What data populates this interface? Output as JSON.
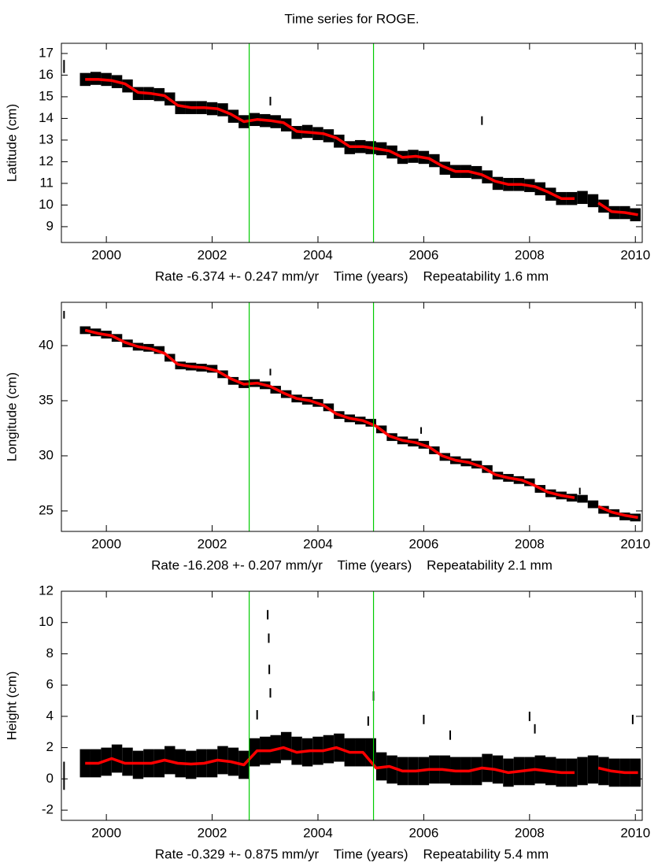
{
  "chart_data": [
    {
      "type": "timeseries",
      "title": "Time series for ROGE.",
      "ylabel": "Latitude (cm)",
      "xlabel": "Rate -6.374 +- 0.247 mm/yr    Time (years)    Repeatability 1.6 mm",
      "xlim": [
        1999.15,
        2010.13
      ],
      "xticks": [
        2000,
        2002,
        2004,
        2006,
        2008,
        2010
      ],
      "ylim": [
        8.27,
        17.47
      ],
      "yticks": [
        9,
        10,
        11,
        12,
        13,
        14,
        15,
        16,
        17
      ],
      "vlines": [
        2002.7,
        2005.05
      ],
      "vline_color": "#00cc00",
      "series": [
        {
          "style": "band",
          "color": "#000000",
          "error": 0.3,
          "x": [
            1999.2,
            1999.6,
            1999.8,
            2000.0,
            2000.2,
            2000.4,
            2000.6,
            2000.8,
            2001.0,
            2001.2,
            2001.4,
            2001.6,
            2001.8,
            2002.0,
            2002.2,
            2002.4,
            2002.6,
            2002.8,
            2003.0,
            2003.2,
            2003.4,
            2003.6,
            2003.8,
            2004.0,
            2004.2,
            2004.4,
            2004.6,
            2004.8,
            2005.0,
            2005.2,
            2005.4,
            2005.6,
            2005.8,
            2006.0,
            2006.2,
            2006.4,
            2006.6,
            2006.8,
            2007.0,
            2007.2,
            2007.4,
            2007.6,
            2007.8,
            2008.0,
            2008.2,
            2008.4,
            2008.6,
            2008.8,
            2009.0,
            2009.2,
            2009.4,
            2009.6,
            2009.8,
            2010.0
          ],
          "values": [
            16.4,
            15.8,
            15.85,
            15.8,
            15.7,
            15.5,
            15.15,
            15.15,
            15.1,
            14.9,
            14.5,
            14.5,
            14.5,
            14.45,
            14.4,
            14.1,
            13.85,
            13.95,
            13.9,
            13.85,
            13.7,
            13.35,
            13.4,
            13.3,
            13.2,
            12.95,
            12.65,
            12.7,
            12.65,
            12.6,
            12.45,
            12.2,
            12.25,
            12.2,
            12.05,
            11.7,
            11.55,
            11.55,
            11.5,
            11.3,
            11.0,
            10.95,
            10.95,
            10.9,
            10.75,
            10.5,
            10.3,
            10.3,
            10.35,
            10.2,
            9.95,
            9.65,
            9.65,
            9.55
          ]
        },
        {
          "style": "points",
          "color": "#000000",
          "error": 0.2,
          "x": [
            2003.1,
            2007.1
          ],
          "values": [
            14.8,
            13.9
          ]
        },
        {
          "style": "line",
          "color": "#ff0000",
          "x": [
            1999.6,
            1999.85,
            2000.1,
            2000.35,
            2000.6,
            2000.85,
            2001.1,
            2001.35,
            2001.6,
            2001.85,
            2002.1,
            2002.35,
            2002.6,
            2002.85,
            2003.1,
            2003.35,
            2003.6,
            2003.85,
            2004.1,
            2004.35,
            2004.6,
            2004.85,
            2005.1,
            2005.35,
            2005.6,
            2005.85,
            2006.1,
            2006.35,
            2006.6,
            2006.85,
            2007.1,
            2007.35,
            2007.6,
            2007.85,
            2008.1,
            2008.35,
            2008.6,
            2008.85,
            2009.05,
            2009.3,
            2009.55,
            2009.8,
            2010.05
          ],
          "values": [
            15.8,
            15.8,
            15.75,
            15.6,
            15.2,
            15.15,
            15.05,
            14.6,
            14.5,
            14.5,
            14.45,
            14.2,
            13.85,
            13.95,
            13.9,
            13.8,
            13.4,
            13.35,
            13.3,
            13.1,
            12.7,
            12.7,
            12.6,
            12.5,
            12.2,
            12.25,
            12.15,
            11.8,
            11.55,
            11.55,
            11.4,
            11.1,
            10.95,
            10.95,
            10.85,
            10.6,
            10.3,
            10.3,
            null,
            10.1,
            9.7,
            9.65,
            9.55
          ]
        }
      ]
    },
    {
      "type": "timeseries",
      "ylabel": "Longitude (cm)",
      "xlabel": "Rate -16.208 +- 0.207 mm/yr    Time (years)    Repeatability 2.1 mm",
      "xlim": [
        1999.15,
        2010.13
      ],
      "xticks": [
        2000,
        2002,
        2004,
        2006,
        2008,
        2010
      ],
      "ylim": [
        23.14,
        43.93
      ],
      "yticks": [
        25,
        30,
        35,
        40
      ],
      "vlines": [
        2002.7,
        2005.05
      ],
      "vline_color": "#00cc00",
      "series": [
        {
          "style": "band",
          "color": "#000000",
          "error": 0.35,
          "x": [
            1999.2,
            1999.6,
            1999.8,
            2000.0,
            2000.2,
            2000.4,
            2000.6,
            2000.8,
            2001.0,
            2001.2,
            2001.4,
            2001.6,
            2001.8,
            2002.0,
            2002.2,
            2002.4,
            2002.6,
            2002.8,
            2003.0,
            2003.2,
            2003.4,
            2003.6,
            2003.8,
            2004.0,
            2004.2,
            2004.4,
            2004.6,
            2004.8,
            2005.0,
            2005.2,
            2005.4,
            2005.6,
            2005.8,
            2006.0,
            2006.2,
            2006.4,
            2006.6,
            2006.8,
            2007.0,
            2007.2,
            2007.4,
            2007.6,
            2007.8,
            2008.0,
            2008.2,
            2008.4,
            2008.6,
            2008.8,
            2009.0,
            2009.2,
            2009.4,
            2009.6,
            2009.8,
            2010.0
          ],
          "values": [
            42.8,
            41.4,
            41.2,
            41.0,
            40.7,
            40.2,
            39.9,
            39.8,
            39.6,
            38.9,
            38.2,
            38.1,
            38.0,
            37.9,
            37.4,
            36.8,
            36.5,
            36.6,
            36.4,
            36.0,
            35.6,
            35.2,
            35.0,
            34.8,
            34.4,
            33.7,
            33.4,
            33.2,
            33.0,
            32.4,
            31.7,
            31.4,
            31.2,
            31.0,
            30.5,
            29.9,
            29.6,
            29.4,
            29.2,
            28.8,
            28.2,
            28.0,
            27.8,
            27.6,
            27.0,
            26.6,
            26.4,
            26.2,
            26.1,
            25.6,
            25.1,
            24.8,
            24.5,
            24.4
          ]
        },
        {
          "style": "points",
          "color": "#000000",
          "error": 0.3,
          "x": [
            2003.1,
            2005.95,
            2008.95
          ],
          "values": [
            37.6,
            32.3,
            26.8
          ]
        },
        {
          "style": "line",
          "color": "#ff0000",
          "x": [
            1999.6,
            1999.85,
            2000.1,
            2000.35,
            2000.6,
            2000.85,
            2001.1,
            2001.35,
            2001.6,
            2001.85,
            2002.1,
            2002.35,
            2002.6,
            2002.85,
            2003.1,
            2003.35,
            2003.6,
            2003.85,
            2004.1,
            2004.35,
            2004.6,
            2004.85,
            2005.1,
            2005.35,
            2005.6,
            2005.85,
            2006.1,
            2006.35,
            2006.6,
            2006.85,
            2007.1,
            2007.35,
            2007.6,
            2007.85,
            2008.1,
            2008.35,
            2008.6,
            2008.85,
            2009.05,
            2009.3,
            2009.55,
            2009.8,
            2010.05
          ],
          "values": [
            41.4,
            41.1,
            40.9,
            40.3,
            39.9,
            39.7,
            39.3,
            38.3,
            38.1,
            38.0,
            37.7,
            37.0,
            36.5,
            36.6,
            36.3,
            35.7,
            35.2,
            35.0,
            34.6,
            33.8,
            33.4,
            33.2,
            32.7,
            31.8,
            31.4,
            31.2,
            30.8,
            30.0,
            29.6,
            29.4,
            29.0,
            28.3,
            28.0,
            27.8,
            27.3,
            26.7,
            26.4,
            26.2,
            null,
            25.4,
            24.9,
            24.6,
            24.4
          ]
        }
      ]
    },
    {
      "type": "timeseries",
      "ylabel": "Height (cm)",
      "xlabel": "Rate -0.329 +- 0.875 mm/yr    Time (years)    Repeatability 5.4 mm",
      "xlim": [
        1999.15,
        2010.13
      ],
      "xticks": [
        2000,
        2002,
        2004,
        2006,
        2008,
        2010
      ],
      "ylim": [
        -2.65,
        12
      ],
      "yticks": [
        -2,
        0,
        2,
        4,
        6,
        8,
        10,
        12
      ],
      "vlines": [
        2002.7,
        2005.05
      ],
      "vline_color": "#00cc00",
      "series": [
        {
          "style": "band",
          "color": "#000000",
          "error": 0.9,
          "x": [
            1999.2,
            1999.6,
            1999.8,
            2000.0,
            2000.2,
            2000.4,
            2000.6,
            2000.8,
            2001.0,
            2001.2,
            2001.4,
            2001.6,
            2001.8,
            2002.0,
            2002.2,
            2002.4,
            2002.6,
            2002.8,
            2003.0,
            2003.2,
            2003.4,
            2003.6,
            2003.8,
            2004.0,
            2004.2,
            2004.4,
            2004.6,
            2004.8,
            2005.0,
            2005.2,
            2005.4,
            2005.6,
            2005.8,
            2006.0,
            2006.2,
            2006.4,
            2006.6,
            2006.8,
            2007.0,
            2007.2,
            2007.4,
            2007.6,
            2007.8,
            2008.0,
            2008.2,
            2008.4,
            2008.6,
            2008.8,
            2009.0,
            2009.2,
            2009.4,
            2009.6,
            2009.8,
            2010.0
          ],
          "values": [
            0.2,
            1.0,
            1.0,
            1.1,
            1.3,
            1.1,
            0.9,
            1.0,
            1.0,
            1.2,
            1.0,
            0.9,
            1.0,
            1.0,
            1.2,
            1.1,
            0.9,
            1.7,
            1.8,
            1.9,
            2.1,
            1.8,
            1.7,
            1.8,
            1.9,
            2.0,
            1.7,
            1.7,
            1.7,
            0.8,
            0.6,
            0.5,
            0.5,
            0.5,
            0.6,
            0.6,
            0.5,
            0.5,
            0.5,
            0.7,
            0.6,
            0.4,
            0.5,
            0.5,
            0.6,
            0.5,
            0.4,
            0.4,
            0.5,
            0.6,
            0.5,
            0.4,
            0.4,
            0.4
          ]
        },
        {
          "style": "points",
          "color": "#000000",
          "error": 0.3,
          "x": [
            2003.05,
            2003.07,
            2003.08,
            2003.1,
            2002.85,
            2005.05,
            2004.95,
            2006.0,
            2006.5,
            2008.0,
            2008.1,
            2009.95
          ],
          "values": [
            10.5,
            9.0,
            7.0,
            5.5,
            4.1,
            5.3,
            3.7,
            3.8,
            2.8,
            4.0,
            3.2,
            3.8
          ]
        },
        {
          "style": "line",
          "color": "#ff0000",
          "x": [
            1999.6,
            1999.85,
            2000.1,
            2000.35,
            2000.6,
            2000.85,
            2001.1,
            2001.35,
            2001.6,
            2001.85,
            2002.1,
            2002.35,
            2002.6,
            2002.85,
            2003.1,
            2003.35,
            2003.6,
            2003.85,
            2004.1,
            2004.35,
            2004.6,
            2004.85,
            2005.1,
            2005.35,
            2005.6,
            2005.85,
            2006.1,
            2006.35,
            2006.6,
            2006.85,
            2007.1,
            2007.35,
            2007.6,
            2007.85,
            2008.1,
            2008.35,
            2008.6,
            2008.85,
            2009.05,
            2009.3,
            2009.55,
            2009.8,
            2010.05
          ],
          "values": [
            1.0,
            1.0,
            1.3,
            1.0,
            1.0,
            1.0,
            1.2,
            1.0,
            0.95,
            1.0,
            1.2,
            1.1,
            0.9,
            1.8,
            1.8,
            2.0,
            1.7,
            1.8,
            1.8,
            2.0,
            1.7,
            1.7,
            0.7,
            0.8,
            0.5,
            0.5,
            0.6,
            0.6,
            0.5,
            0.5,
            0.7,
            0.6,
            0.4,
            0.5,
            0.6,
            0.5,
            0.4,
            0.4,
            null,
            0.7,
            0.5,
            0.4,
            0.4
          ]
        }
      ]
    }
  ]
}
